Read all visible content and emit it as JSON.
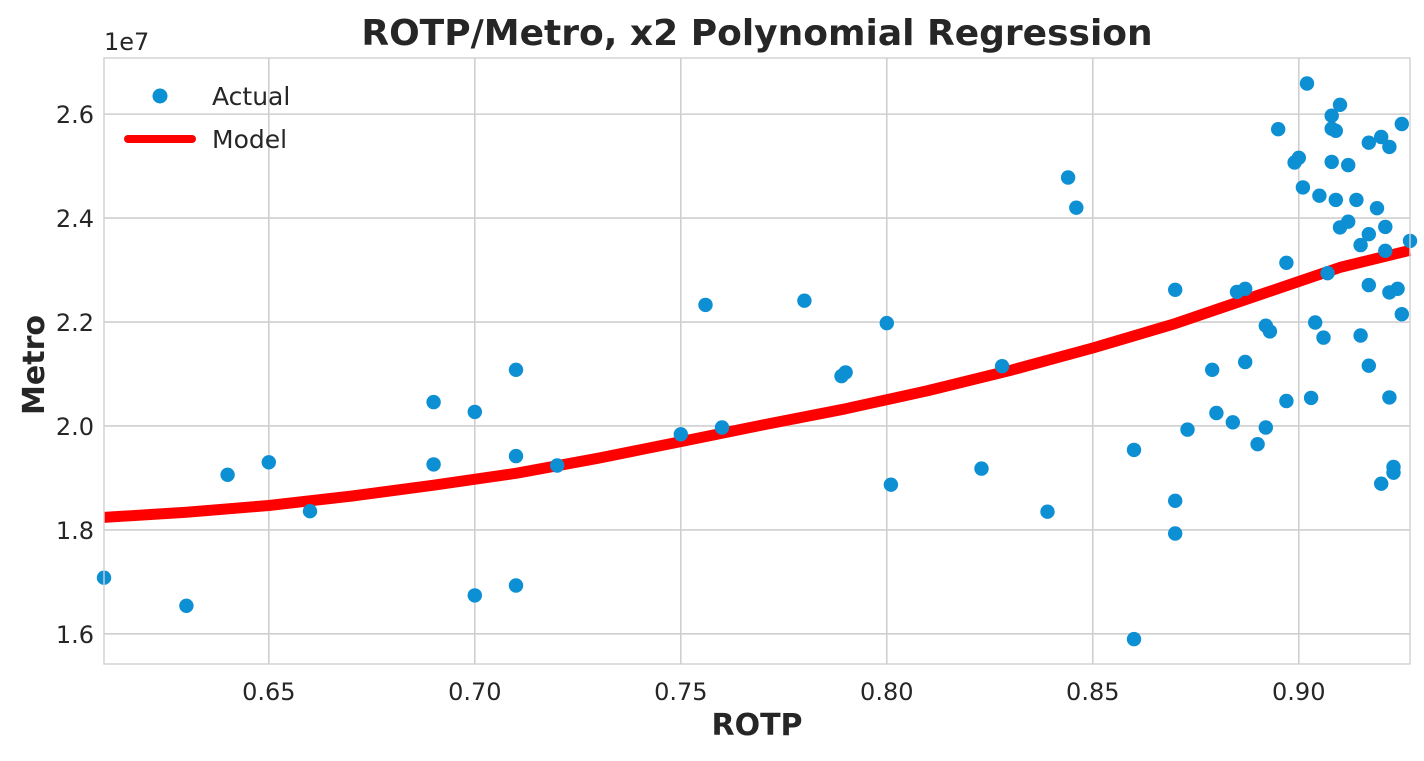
{
  "chart_data": {
    "type": "scatter",
    "title": "ROTP/Metro, x2 Polynomial Regression",
    "xlabel": "ROTP",
    "ylabel": "Metro",
    "y_offset_label": "1e7",
    "xlim": [
      0.61,
      0.927
    ],
    "ylim": [
      15.42,
      27.08
    ],
    "x_ticks": [
      0.65,
      0.7,
      0.75,
      0.8,
      0.85,
      0.9
    ],
    "x_tick_labels": [
      "0.65",
      "0.70",
      "0.75",
      "0.80",
      "0.85",
      "0.90"
    ],
    "y_ticks": [
      16,
      18,
      20,
      22,
      24,
      26
    ],
    "y_tick_labels": [
      "1.6",
      "1.8",
      "2.0",
      "2.2",
      "2.4",
      "2.6"
    ],
    "y_scale_note": "y values in units of 1e6 (tick labels shown x1e7)",
    "grid": true,
    "legend_position": "upper-left",
    "series": [
      {
        "name": "Actual",
        "kind": "scatter",
        "color": "#0d8fd3",
        "points": [
          [
            0.61,
            17.08
          ],
          [
            0.63,
            16.54
          ],
          [
            0.64,
            19.06
          ],
          [
            0.65,
            19.3
          ],
          [
            0.66,
            18.36
          ],
          [
            0.69,
            20.46
          ],
          [
            0.69,
            19.26
          ],
          [
            0.7,
            20.27
          ],
          [
            0.7,
            16.74
          ],
          [
            0.71,
            21.08
          ],
          [
            0.71,
            19.42
          ],
          [
            0.71,
            16.93
          ],
          [
            0.72,
            19.24
          ],
          [
            0.75,
            19.84
          ],
          [
            0.756,
            22.33
          ],
          [
            0.76,
            19.97
          ],
          [
            0.78,
            22.41
          ],
          [
            0.789,
            20.96
          ],
          [
            0.79,
            21.03
          ],
          [
            0.8,
            21.98
          ],
          [
            0.801,
            18.87
          ],
          [
            0.823,
            19.18
          ],
          [
            0.828,
            21.15
          ],
          [
            0.839,
            18.35
          ],
          [
            0.844,
            24.78
          ],
          [
            0.846,
            24.2
          ],
          [
            0.86,
            19.54
          ],
          [
            0.86,
            15.9
          ],
          [
            0.87,
            22.62
          ],
          [
            0.87,
            18.56
          ],
          [
            0.87,
            17.93
          ],
          [
            0.873,
            19.93
          ],
          [
            0.879,
            21.08
          ],
          [
            0.88,
            20.25
          ],
          [
            0.884,
            20.07
          ],
          [
            0.885,
            22.58
          ],
          [
            0.887,
            22.64
          ],
          [
            0.887,
            21.23
          ],
          [
            0.89,
            19.65
          ],
          [
            0.892,
            21.93
          ],
          [
            0.892,
            19.97
          ],
          [
            0.893,
            21.82
          ],
          [
            0.895,
            25.71
          ],
          [
            0.897,
            23.14
          ],
          [
            0.897,
            20.48
          ],
          [
            0.899,
            25.07
          ],
          [
            0.9,
            25.16
          ],
          [
            0.901,
            24.59
          ],
          [
            0.902,
            26.59
          ],
          [
            0.903,
            20.54
          ],
          [
            0.904,
            21.99
          ],
          [
            0.905,
            24.43
          ],
          [
            0.906,
            21.7
          ],
          [
            0.907,
            22.94
          ],
          [
            0.908,
            25.97
          ],
          [
            0.908,
            25.72
          ],
          [
            0.908,
            25.08
          ],
          [
            0.909,
            25.68
          ],
          [
            0.909,
            24.35
          ],
          [
            0.91,
            26.18
          ],
          [
            0.91,
            23.82
          ],
          [
            0.912,
            25.02
          ],
          [
            0.912,
            23.93
          ],
          [
            0.914,
            24.35
          ],
          [
            0.915,
            23.48
          ],
          [
            0.915,
            21.74
          ],
          [
            0.917,
            25.45
          ],
          [
            0.917,
            23.69
          ],
          [
            0.917,
            22.71
          ],
          [
            0.917,
            21.16
          ],
          [
            0.919,
            24.19
          ],
          [
            0.92,
            25.56
          ],
          [
            0.92,
            18.89
          ],
          [
            0.921,
            23.83
          ],
          [
            0.921,
            23.37
          ],
          [
            0.922,
            25.37
          ],
          [
            0.922,
            22.57
          ],
          [
            0.922,
            20.55
          ],
          [
            0.923,
            19.21
          ],
          [
            0.923,
            19.1
          ],
          [
            0.924,
            22.64
          ],
          [
            0.925,
            25.81
          ],
          [
            0.925,
            22.15
          ],
          [
            0.927,
            23.56
          ]
        ]
      },
      {
        "name": "Model",
        "kind": "line",
        "color": "#ff0000",
        "points": [
          [
            0.61,
            18.24
          ],
          [
            0.63,
            18.34
          ],
          [
            0.65,
            18.47
          ],
          [
            0.67,
            18.65
          ],
          [
            0.69,
            18.86
          ],
          [
            0.71,
            19.09
          ],
          [
            0.73,
            19.38
          ],
          [
            0.75,
            19.7
          ],
          [
            0.77,
            20.02
          ],
          [
            0.79,
            20.33
          ],
          [
            0.81,
            20.68
          ],
          [
            0.83,
            21.07
          ],
          [
            0.85,
            21.5
          ],
          [
            0.87,
            21.97
          ],
          [
            0.89,
            22.51
          ],
          [
            0.91,
            23.05
          ],
          [
            0.927,
            23.38
          ]
        ]
      }
    ]
  }
}
